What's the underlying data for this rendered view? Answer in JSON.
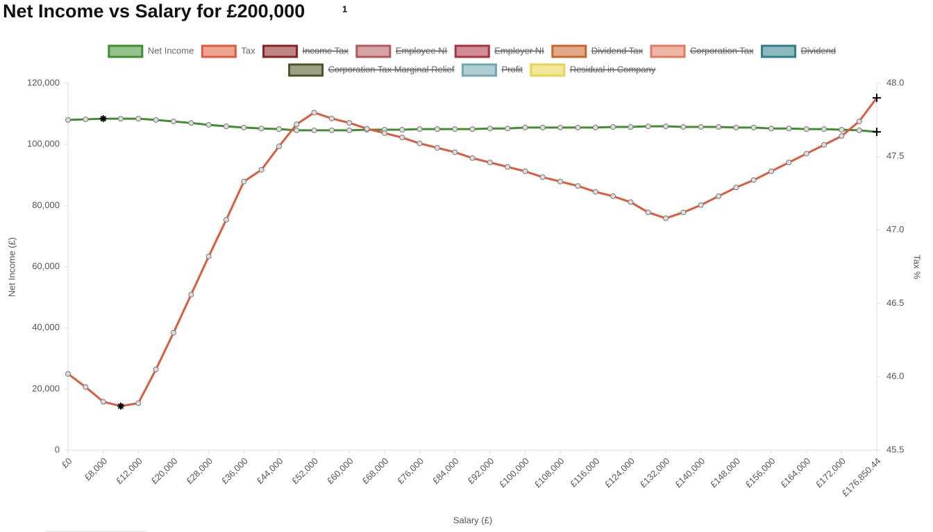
{
  "chart_data": {
    "type": "line",
    "title": "Net Income vs Salary for £200,000",
    "title_note": "1",
    "x_label": "Salary (£)",
    "y_label": "Net Income (£)",
    "y2_label": "Tax %",
    "categories": [
      "£0",
      null,
      "£8,000",
      null,
      "£12,000",
      null,
      "£20,000",
      null,
      "£28,000",
      null,
      "£36,000",
      null,
      "£44,000",
      null,
      "£52,000",
      null,
      "£60,000",
      null,
      "£68,000",
      null,
      "£76,000",
      null,
      "£84,000",
      null,
      "£92,000",
      null,
      "£100,000",
      null,
      "£108,000",
      null,
      "£116,000",
      null,
      "£124,000",
      null,
      "£132,000",
      null,
      "£140,000",
      null,
      "£148,000",
      null,
      "£156,000",
      null,
      "£164,000",
      null,
      "£172,000",
      null,
      "£176,850.44"
    ],
    "series": [
      {
        "name": "Net Income",
        "color": "#3f8f2f",
        "values": [
          108000,
          108200,
          108400,
          108400,
          108400,
          108000,
          107500,
          107000,
          106400,
          105900,
          105500,
          105200,
          105000,
          104600,
          104600,
          104600,
          104600,
          104800,
          104800,
          104800,
          105000,
          105000,
          105000,
          105000,
          105200,
          105200,
          105500,
          105500,
          105500,
          105500,
          105500,
          105700,
          105700,
          105900,
          105900,
          105700,
          105700,
          105700,
          105500,
          105500,
          105200,
          105200,
          105000,
          105000,
          104800,
          104600,
          104100
        ]
      },
      {
        "name": "Tax",
        "color": "#e05a3a",
        "axis": "y2",
        "values": [
          46.02,
          45.93,
          45.83,
          45.8,
          45.82,
          46.05,
          46.3,
          46.56,
          46.82,
          47.07,
          47.33,
          47.41,
          47.57,
          47.72,
          47.8,
          47.76,
          47.73,
          47.69,
          47.66,
          47.63,
          47.59,
          47.56,
          47.53,
          47.49,
          47.46,
          47.43,
          47.4,
          47.36,
          47.33,
          47.3,
          47.26,
          47.23,
          47.19,
          47.12,
          47.08,
          47.12,
          47.17,
          47.23,
          47.29,
          47.34,
          47.4,
          47.46,
          47.52,
          47.58,
          47.64,
          47.74,
          47.9
        ]
      }
    ],
    "hidden_series": [
      {
        "name": "Income Tax",
        "color": "#8b2020"
      },
      {
        "name": "Employee NI",
        "color": "#b05a5a"
      },
      {
        "name": "Employer NI",
        "color": "#a8323e"
      },
      {
        "name": "Dividend Tax",
        "color": "#c8662a"
      },
      {
        "name": "Corporation Tax",
        "color": "#e07a5f"
      },
      {
        "name": "Dividend",
        "color": "#2f7f8a"
      },
      {
        "name": "Corporation Tax Marginal Relief",
        "color": "#4a5323"
      },
      {
        "name": "Profit",
        "color": "#6fa8b0"
      },
      {
        "name": "Residual in Company",
        "color": "#e8d44a"
      }
    ],
    "ylim": [
      0,
      120000
    ],
    "yticks": [
      0,
      {
        "value": 20000,
        "label": "20,000"
      },
      {
        "value": 40000,
        "label": "40,000"
      },
      {
        "value": 60000,
        "label": "60,000"
      },
      {
        "value": 80000,
        "label": "80,000"
      },
      {
        "value": 100000,
        "label": "100,000"
      },
      {
        "value": 120000,
        "label": "120,000"
      }
    ],
    "y2lim": [
      45.5,
      48.0
    ],
    "y2ticks": [
      45.5,
      {
        "value": 46.0,
        "label": "46.0"
      },
      46.5,
      {
        "value": 47.0,
        "label": "47.0"
      },
      47.5,
      {
        "value": 48.0,
        "label": "48.0"
      }
    ],
    "legend": "top",
    "grid": false
  }
}
